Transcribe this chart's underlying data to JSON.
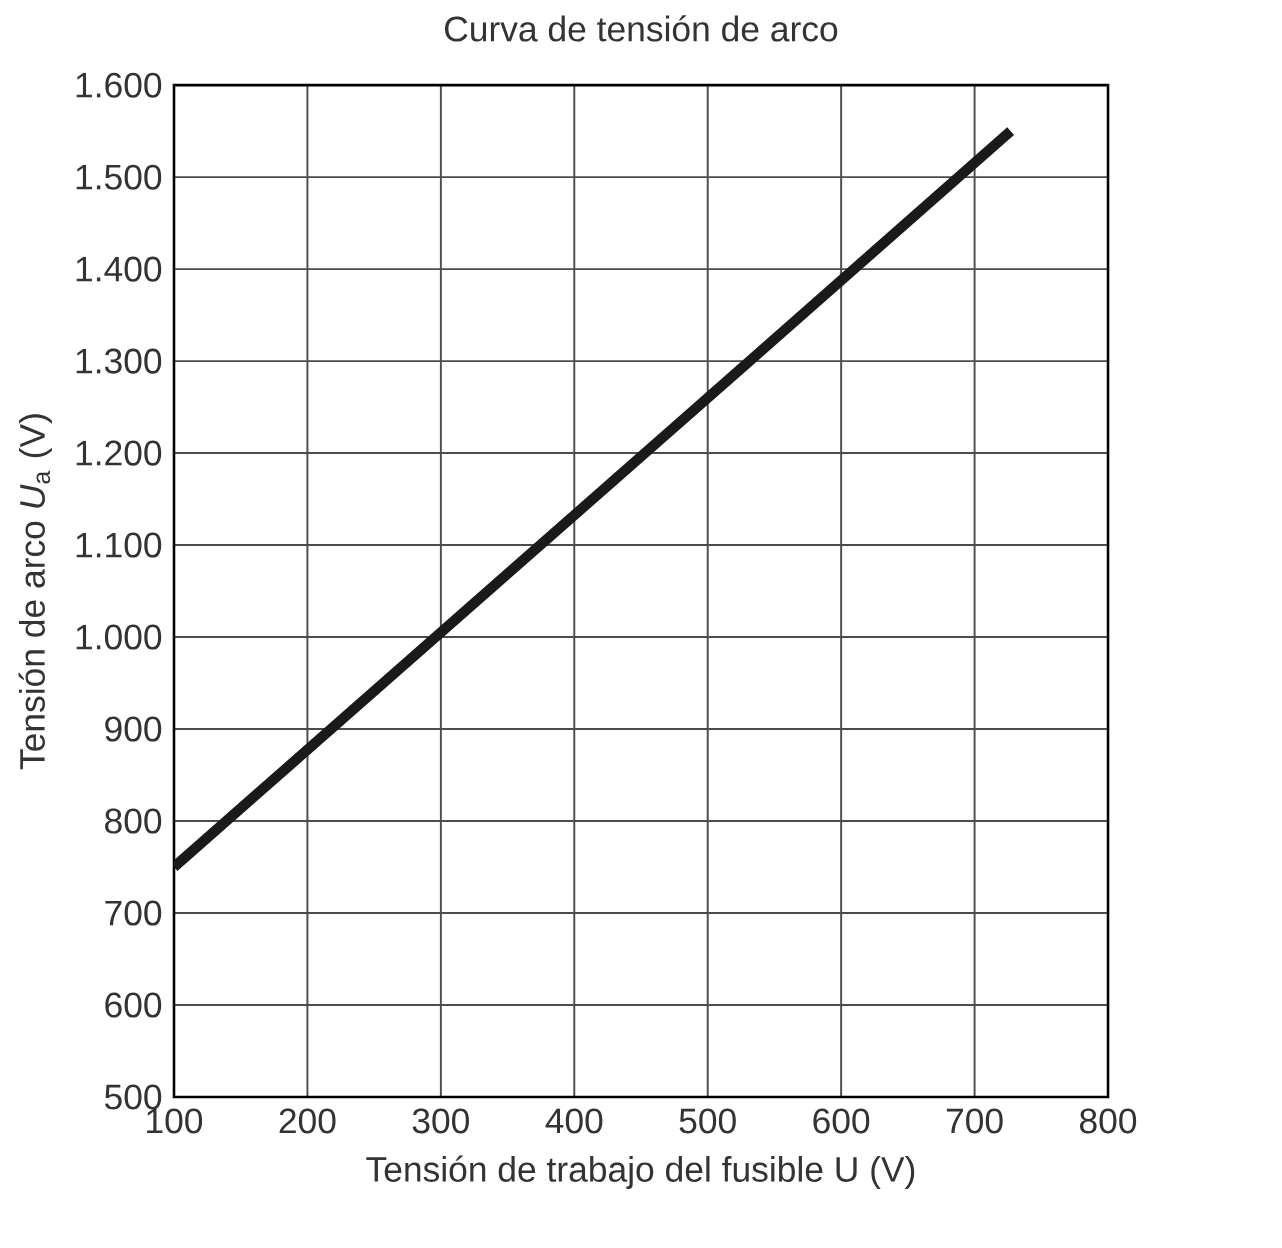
{
  "chart_data": {
    "type": "line",
    "title": "Curva de tensión de arco",
    "xlabel": "Tensión de trabajo del fusible U (V)",
    "ylabel": "Tensión de arco *U*$_{a}$ (V)",
    "x": [
      100,
      300,
      500,
      727
    ],
    "series": [
      {
        "color": "#1a1a1a",
        "values": [
          750,
          1005,
          1260,
          1550
        ]
      }
    ],
    "xlim": [
      100,
      800
    ],
    "xticks": [
      100,
      200,
      300,
      400,
      500,
      600,
      700,
      800
    ],
    "ylim": [
      500,
      1600
    ],
    "yticks": [
      {
        "value": 500,
        "label": "500"
      },
      {
        "value": 600,
        "label": "600"
      },
      {
        "value": 700,
        "label": "700"
      },
      {
        "value": 800,
        "label": "800"
      },
      {
        "value": 900,
        "label": "900"
      },
      {
        "value": 1000,
        "label": "1.000"
      },
      {
        "value": 1100,
        "label": "1.100"
      },
      {
        "value": 1200,
        "label": "1.200"
      },
      {
        "value": 1300,
        "label": "1.300"
      },
      {
        "value": 1400,
        "label": "1.400"
      },
      {
        "value": 1500,
        "label": "1.500"
      },
      {
        "value": 1600,
        "label": "1.600"
      }
    ],
    "grid": true,
    "marker": "none",
    "line_style": "solid"
  }
}
